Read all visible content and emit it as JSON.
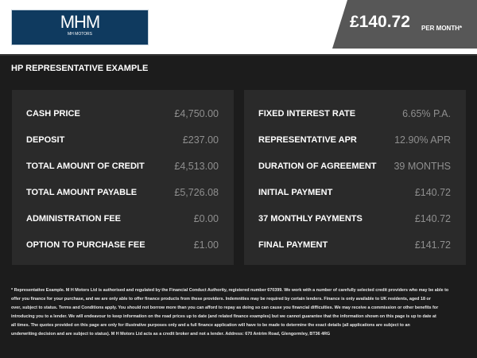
{
  "header": {
    "logo_text": "MHM",
    "logo_sub": "MH MOTORS",
    "price": "£140.72",
    "per_month": "PER MONTH*"
  },
  "title": "HP REPRESENTATIVE EXAMPLE",
  "left": [
    {
      "label": "CASH PRICE",
      "value": "£4,750.00"
    },
    {
      "label": "DEPOSIT",
      "value": "£237.00"
    },
    {
      "label": "TOTAL AMOUNT OF CREDIT",
      "value": "£4,513.00"
    },
    {
      "label": "TOTAL AMOUNT PAYABLE",
      "value": "£5,726.08"
    },
    {
      "label": "ADMINISTRATION FEE",
      "value": "£0.00"
    },
    {
      "label": "OPTION TO PURCHASE FEE",
      "value": "£1.00"
    }
  ],
  "right": [
    {
      "label": "FIXED INTEREST RATE",
      "value": "6.65% P.A."
    },
    {
      "label": "REPRESENTATIVE APR",
      "value": "12.90% APR"
    },
    {
      "label": "DURATION OF AGREEMENT",
      "value": "39 MONTHS"
    },
    {
      "label": "INITIAL PAYMENT",
      "value": "£140.72"
    },
    {
      "label": "37 MONTHLY PAYMENTS",
      "value": "£140.72"
    },
    {
      "label": "FINAL PAYMENT",
      "value": "£141.72"
    }
  ],
  "footer": [
    "* Representative Example. M H Motors Ltd is authorised and regulated by the Financial Conduct Authority, registered number 670399. We work with a number of carefully selected credit providers who may be able to",
    "offer you finance for your purchase, and we are only able to offer finance products from these providers. Indemnities may be required by certain lenders. Finance is only available to UK residents, aged 18 or",
    "over, subject to status. Terms and Conditions apply. You should not borrow more than you can afford to repay as doing so can cause you financial difficulties. We may receive a commission or other benefits for",
    "introducing you to a lender. We will endeavour to keep information on the road prices up to date (and related finance examples) but we cannot guarantee that the information shown on this page is up to date at",
    "all times. The quotes provided on this page are only for illustrative purposes only and a full finance application will have to be made to determine the exact details (all applications are subject to an",
    "underwriting decision and are subject to status). M H Motors Ltd acts as a credit broker and not a lender. Address: 670 Antrim Road, Glengormley, BT36 4RG"
  ]
}
